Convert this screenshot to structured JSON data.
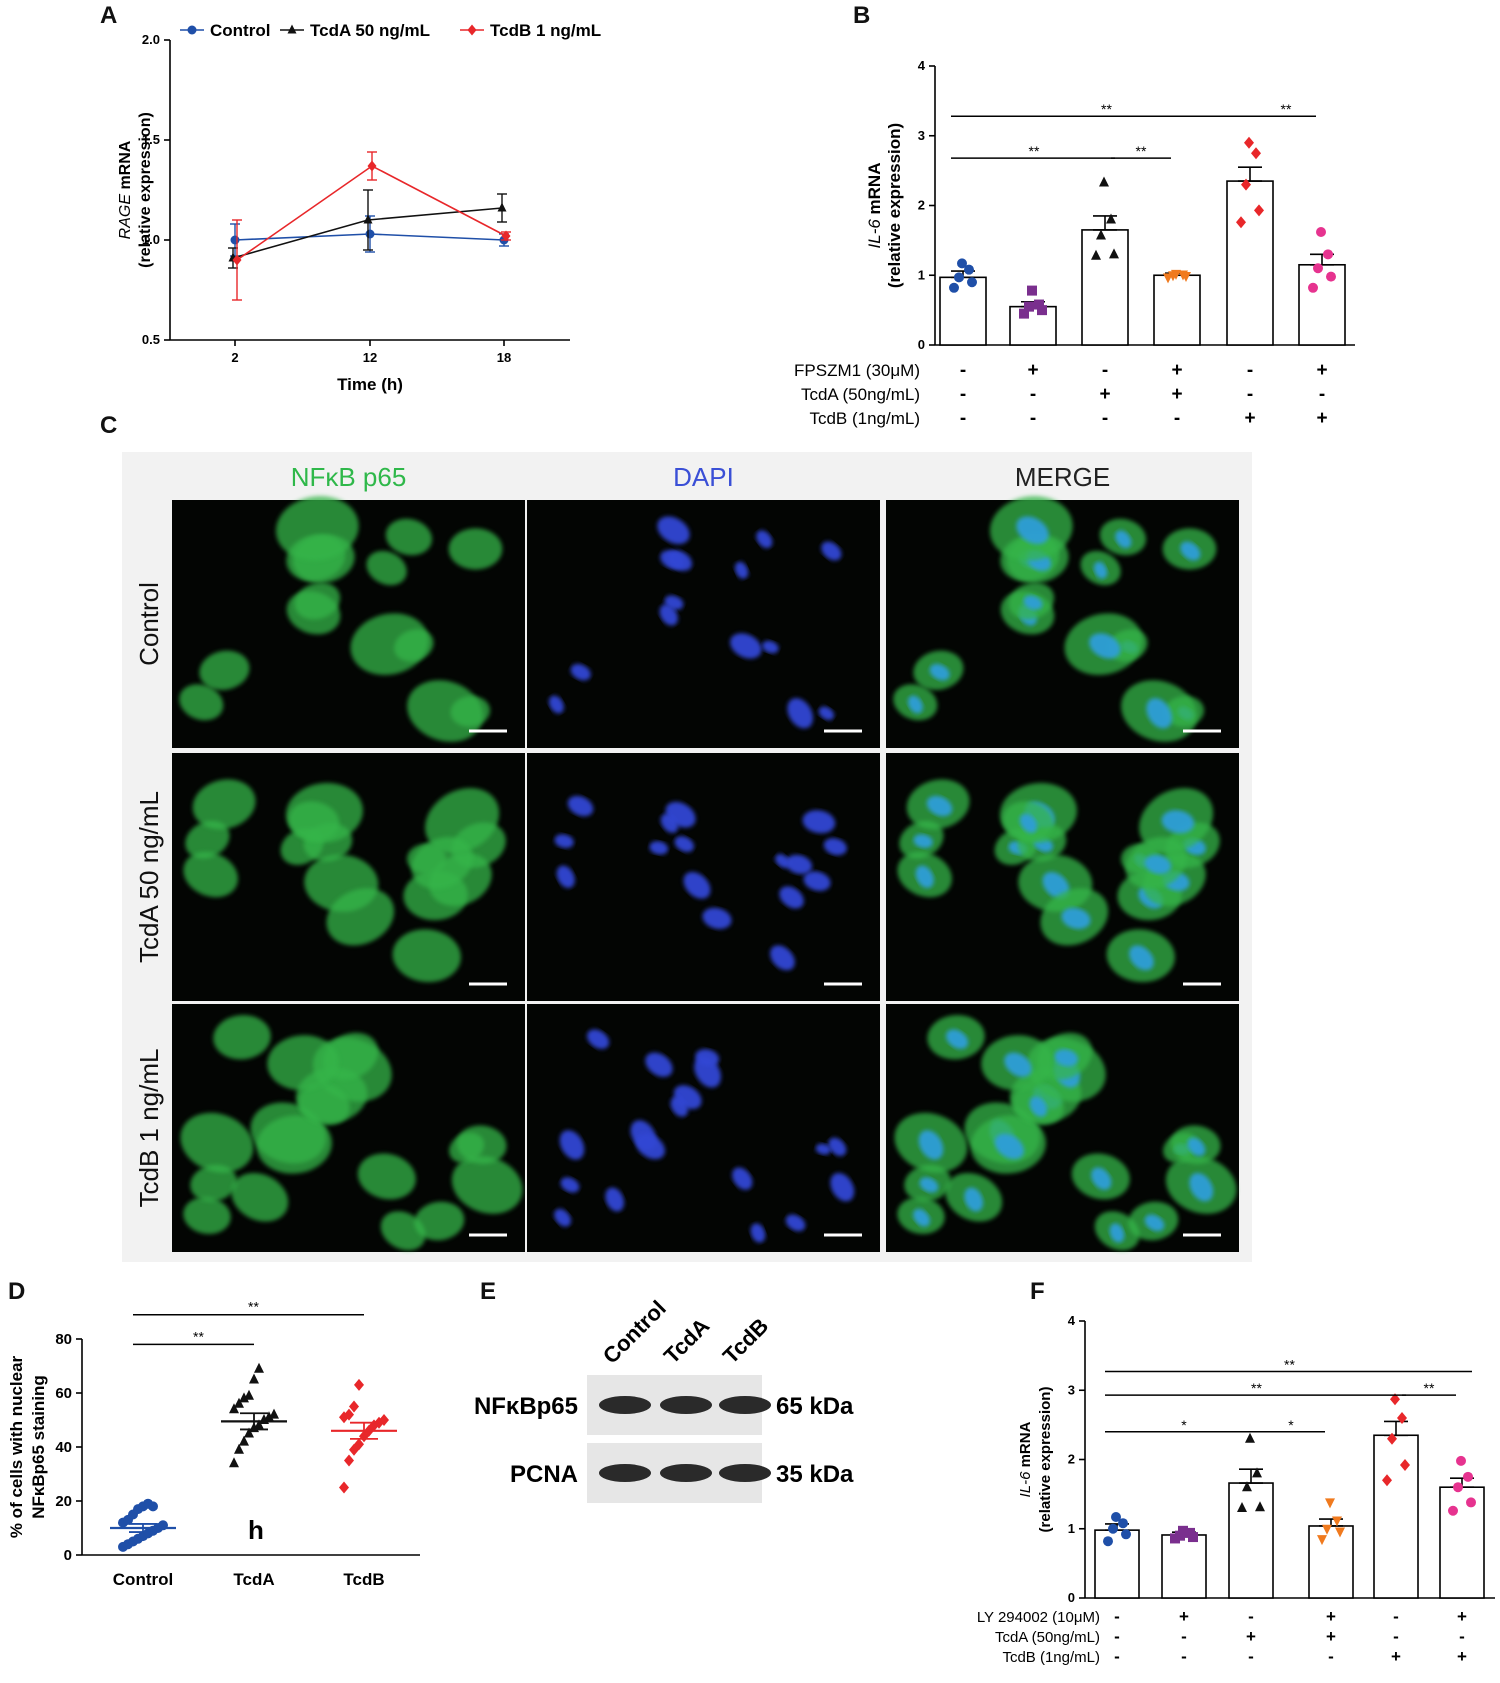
{
  "panels": {
    "A": "A",
    "B": "B",
    "C": "C",
    "D": "D",
    "E": "E",
    "F": "F"
  },
  "colors": {
    "control": "#1f4fa8",
    "tcda": "#111111",
    "tcdb": "#e8272a",
    "fpszm1": "#7a2f8e",
    "tcda_inh": "#f07a1e",
    "tcdb_inh": "#e6338f",
    "green": "#2fb84a",
    "blue": "#3a4fd6"
  },
  "chart_data": [
    {
      "id": "A",
      "type": "line",
      "xlabel": "Time (h)",
      "ylabel_italic": "RAGE",
      "ylabel_rest": " mRNA",
      "ylabel2": "(relative expression)",
      "x": [
        2,
        12,
        18
      ],
      "x_ticks": [
        "2",
        "12",
        "18"
      ],
      "y_ticks": [
        "0.5",
        "1.0",
        "1.5",
        "2.0"
      ],
      "ylim": [
        0.5,
        2.0
      ],
      "legend_position": "top",
      "series": [
        {
          "name": "Control",
          "values": [
            1.0,
            1.03,
            1.0
          ],
          "err": [
            0.08,
            0.09,
            0.03
          ]
        },
        {
          "name": "TcdA 50 ng/mL",
          "values": [
            0.91,
            1.1,
            1.16
          ],
          "err": [
            0.05,
            0.15,
            0.07
          ]
        },
        {
          "name": "TcdB 1 ng/mL",
          "values": [
            0.9,
            1.37,
            1.02
          ],
          "err": [
            0.2,
            0.07,
            0.02
          ]
        }
      ]
    },
    {
      "id": "B",
      "type": "bar",
      "ylabel_italic": "IL-6",
      "ylabel_rest": " mRNA",
      "ylabel2": "(relative expression)",
      "ylim": [
        0,
        4
      ],
      "y_ticks": [
        "0",
        "1",
        "2",
        "3",
        "4"
      ],
      "values": [
        0.97,
        0.55,
        1.65,
        1.0,
        2.35,
        1.15
      ],
      "err": [
        0.09,
        0.07,
        0.2,
        0.03,
        0.2,
        0.15
      ],
      "points": [
        [
          0.82,
          0.9,
          0.97,
          1.08,
          1.17
        ],
        [
          0.45,
          0.5,
          0.55,
          0.58,
          0.78
        ],
        [
          1.28,
          1.3,
          1.57,
          1.8,
          2.33
        ],
        [
          0.97,
          0.99,
          1.0,
          1.01,
          1.02
        ],
        [
          1.76,
          1.93,
          2.3,
          2.75,
          2.9
        ],
        [
          0.82,
          0.98,
          1.1,
          1.3,
          1.62
        ]
      ],
      "rows": [
        {
          "label": "FPSZM1 (30μM)",
          "signs": [
            "-",
            "+",
            "-",
            "+",
            "-",
            "+"
          ]
        },
        {
          "label": "TcdA (50ng/mL)",
          "signs": [
            "-",
            "-",
            "+",
            "+",
            "-",
            "-"
          ]
        },
        {
          "label": "TcdB (1ng/mL)",
          "signs": [
            "-",
            "-",
            "-",
            "-",
            "+",
            "+"
          ]
        }
      ],
      "significance": [
        {
          "from": 0,
          "to": 4,
          "y": 3.28,
          "label": "**"
        },
        {
          "from": 4,
          "to": 5,
          "y": 3.28,
          "label": "**"
        },
        {
          "from": 0,
          "to": 2,
          "y": 2.68,
          "label": "**"
        },
        {
          "from": 2,
          "to": 3,
          "y": 2.68,
          "label": "**"
        }
      ]
    },
    {
      "id": "D",
      "type": "scatter",
      "ylabel": "% of cells with nuclear",
      "ylabel2": "NFκBp65  staining",
      "categories": [
        "Control",
        "TcdA",
        "TcdB"
      ],
      "ylim": [
        0,
        80
      ],
      "y_ticks": [
        "0",
        "20",
        "40",
        "60",
        "80"
      ],
      "means": [
        10,
        49.5,
        46
      ],
      "sem": [
        1.5,
        3,
        3
      ],
      "points": [
        [
          3,
          4,
          5,
          6,
          7,
          8,
          9,
          10,
          11,
          12,
          13,
          15,
          17,
          18,
          19,
          18
        ],
        [
          34,
          39,
          42,
          45,
          47,
          48,
          50,
          51,
          52,
          54,
          56,
          58,
          59,
          65,
          69
        ],
        [
          25,
          35,
          39,
          41,
          44,
          46,
          48,
          49,
          50,
          51,
          52,
          55,
          63
        ]
      ],
      "annotation": "h",
      "significance": [
        {
          "from": 0,
          "to": 1,
          "y": 78,
          "label": "**"
        },
        {
          "from": 0,
          "to": 2,
          "y": 89,
          "label": "**"
        }
      ]
    },
    {
      "id": "F",
      "type": "bar",
      "ylabel_italic": "IL-6",
      "ylabel_rest": " mRNA",
      "ylabel2": "(relative expression)",
      "ylim": [
        0,
        4
      ],
      "y_ticks": [
        "0",
        "1",
        "2",
        "3",
        "4"
      ],
      "values": [
        0.98,
        0.91,
        1.66,
        1.04,
        2.35,
        1.6
      ],
      "err": [
        0.09,
        0.04,
        0.2,
        0.1,
        0.2,
        0.13
      ],
      "points": [
        [
          0.82,
          0.92,
          1.0,
          1.08,
          1.17
        ],
        [
          0.86,
          0.88,
          0.9,
          0.94,
          0.97
        ],
        [
          1.3,
          1.31,
          1.6,
          1.8,
          2.3
        ],
        [
          0.85,
          0.96,
          1.0,
          1.12,
          1.38
        ],
        [
          1.7,
          1.92,
          2.3,
          2.6,
          2.87
        ],
        [
          1.26,
          1.38,
          1.6,
          1.75,
          1.98
        ]
      ],
      "rows": [
        {
          "label": "LY 294002 (10μM)",
          "signs": [
            "-",
            "+",
            "-",
            "+",
            "-",
            "+"
          ]
        },
        {
          "label": "TcdA (50ng/mL)",
          "signs": [
            "-",
            "-",
            "+",
            "+",
            "-",
            "-"
          ]
        },
        {
          "label": "TcdB (1ng/mL)",
          "signs": [
            "-",
            "-",
            "-",
            "-",
            "+",
            "+"
          ]
        }
      ],
      "significance": [
        {
          "from": 0,
          "to": 5,
          "y": 3.27,
          "label": "**"
        },
        {
          "from": 0,
          "to": 4,
          "y": 2.93,
          "label": "**"
        },
        {
          "from": 4,
          "to": 5,
          "y": 2.93,
          "label": "**"
        },
        {
          "from": 0,
          "to": 2,
          "y": 2.4,
          "label": "*"
        },
        {
          "from": 2,
          "to": 3,
          "y": 2.4,
          "label": "*"
        }
      ]
    }
  ],
  "micrographs": {
    "columns": [
      "NFκB p65",
      "DAPI",
      "MERGE"
    ],
    "rows": [
      "Control",
      "TcdA 50 ng/mL",
      "TcdB 1 ng/mL"
    ]
  },
  "blot": {
    "lanes": [
      "Control",
      "TcdA",
      "TcdB"
    ],
    "bands": [
      {
        "name": "NFκBp65",
        "size": "65 kDa"
      },
      {
        "name": "PCNA",
        "size": "35 kDa"
      }
    ]
  }
}
